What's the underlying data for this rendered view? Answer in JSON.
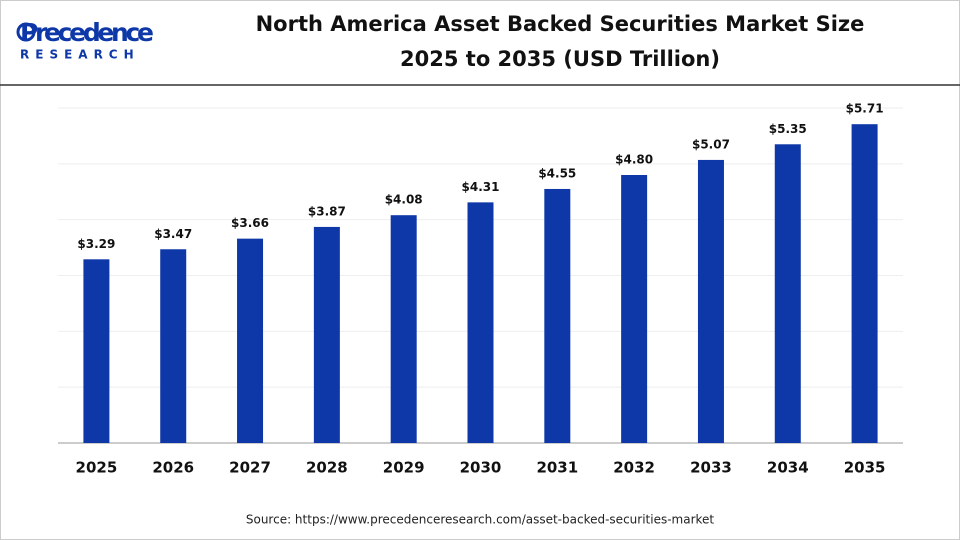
{
  "logo": {
    "name": "Precedence",
    "tagline": "RESEARCH"
  },
  "chart_data": {
    "type": "bar",
    "title": "North America Asset Backed Securities Market Size",
    "subtitle": "2025 to 2035 (USD Trillion)",
    "categories": [
      "2025",
      "2026",
      "2027",
      "2028",
      "2029",
      "2030",
      "2031",
      "2032",
      "2033",
      "2034",
      "2035"
    ],
    "values": [
      3.29,
      3.47,
      3.66,
      3.87,
      4.08,
      4.31,
      4.55,
      4.8,
      5.07,
      5.35,
      5.71
    ],
    "value_labels": [
      "$3.29",
      "$3.47",
      "$3.66",
      "$3.87",
      "$4.08",
      "$4.31",
      "$4.55",
      "$4.80",
      "$5.07",
      "$5.35",
      "$5.71"
    ],
    "color": "#0e37a8",
    "ylim": [
      0,
      6
    ],
    "yticks": [
      0,
      1,
      2,
      3,
      4,
      5,
      6
    ],
    "grid": true,
    "source": "Source: https://www.precedenceresearch.com/asset-backed-securities-market"
  }
}
